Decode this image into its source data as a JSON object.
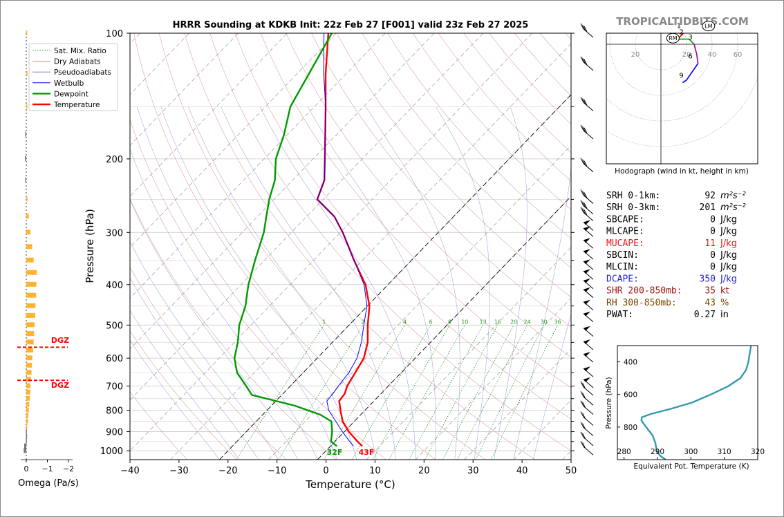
{
  "brand": "TROPICALTIDBITS.COM",
  "skewt": {
    "title": "HRRR Sounding at KDKB Init: 22z Feb 27 [F001] valid 23z Feb 27 2025",
    "xlabel": "Temperature (°C)",
    "ylabel": "Pressure (hPa)",
    "x_ticks": [
      -40,
      -30,
      -20,
      -10,
      0,
      10,
      20,
      30,
      40,
      50
    ],
    "p_ticks": [
      100,
      200,
      300,
      400,
      500,
      600,
      700,
      800,
      900,
      1000
    ],
    "legend": [
      "Sat. Mix. Ratio",
      "Dry Adiabats",
      "Pseudoadiabats",
      "Wetbulb",
      "Dewpoint",
      "Temperature"
    ],
    "mixing_ratio_labels": [
      "1",
      "2",
      "4",
      "6",
      "8",
      "10",
      "13",
      "16",
      "20",
      "24",
      "30",
      "36"
    ],
    "surface_dewpoint_label": "32F",
    "surface_temp_label": "43F",
    "colors": {
      "temperature": "#ff0000",
      "dewpoint": "#009900",
      "wetbulb": "#0000ff",
      "mixratio": "#2a9a2a"
    }
  },
  "omega": {
    "xlabel": "Omega (Pa/s)",
    "ticks": [
      "0",
      "−1",
      "−2"
    ],
    "dgz_label": "DGZ",
    "dgz_top": "DGZ",
    "dgz_bottom": "DGZ"
  },
  "hodograph": {
    "caption": "Hodograph (wind in kt, height in km)",
    "ring_labels": [
      "20",
      "20",
      "40",
      "60"
    ],
    "height_labels": [
      "1",
      "2",
      "3",
      "6",
      "9"
    ],
    "rm_label": "RM",
    "lm_label": "LM"
  },
  "indices": [
    {
      "label": "SRH 0-1km:",
      "value": "92",
      "unit": "m²s⁻²",
      "color": "#000000"
    },
    {
      "label": "SRH 0-3km:",
      "value": "201",
      "unit": "m²s⁻²",
      "color": "#000000"
    },
    {
      "label": "SBCAPE:",
      "value": "0",
      "unit": "J/kg",
      "color": "#000000"
    },
    {
      "label": "MLCAPE:",
      "value": "0",
      "unit": "J/kg",
      "color": "#000000"
    },
    {
      "label": "MUCAPE:",
      "value": "11",
      "unit": "J/kg",
      "color": "#dd2222"
    },
    {
      "label": "SBCIN:",
      "value": "0",
      "unit": "J/kg",
      "color": "#000000"
    },
    {
      "label": "MLCIN:",
      "value": "0",
      "unit": "J/kg",
      "color": "#000000"
    },
    {
      "label": "DCAPE:",
      "value": "350",
      "unit": "J/kg",
      "color": "#2222cc"
    },
    {
      "label": "SHR 200-850mb:",
      "value": "35",
      "unit": "kt",
      "color": "#aa1111"
    },
    {
      "label": "RH 300-850mb:",
      "value": "43",
      "unit": "%",
      "color": "#7a4a00"
    },
    {
      "label": "PWAT:",
      "value": "0.27",
      "unit": "in",
      "color": "#000000"
    }
  ],
  "theta_e": {
    "xlabel": "Equivalent Pot. Temperature (K)",
    "ylabel": "Pressure (hPa)",
    "x_ticks": [
      "280",
      "290",
      "300",
      "310",
      "320"
    ],
    "y_ticks": [
      "400",
      "600",
      "800"
    ]
  },
  "chart_data": [
    {
      "type": "line",
      "title": "HRRR Sounding at KDKB Init: 22z Feb 27 [F001] valid 23z Feb 27 2025",
      "xlabel": "Temperature (°C)",
      "ylabel": "Pressure (hPa)",
      "xlim": [
        -40,
        50
      ],
      "ylim": [
        1050,
        100
      ],
      "y_scale": "log",
      "legend_position": "top-left",
      "series": [
        {
          "name": "Temperature",
          "color": "#ff0000",
          "points": [
            [
              975,
              6.5
            ],
            [
              950,
              4.6
            ],
            [
              900,
              0.9
            ],
            [
              850,
              -2.4
            ],
            [
              800,
              -5.0
            ],
            [
              760,
              -7.1
            ],
            [
              730,
              -7.4
            ],
            [
              700,
              -8.4
            ],
            [
              650,
              -9.4
            ],
            [
              600,
              -10.5
            ],
            [
              550,
              -12.8
            ],
            [
              500,
              -16.2
            ],
            [
              450,
              -19.6
            ],
            [
              400,
              -24.6
            ],
            [
              350,
              -31.7
            ],
            [
              300,
              -39.5
            ],
            [
              275,
              -44.3
            ],
            [
              250,
              -51.2
            ],
            [
              225,
              -53.5
            ],
            [
              200,
              -57.6
            ],
            [
              175,
              -62.3
            ],
            [
              150,
              -67.7
            ],
            [
              125,
              -74.2
            ],
            [
              100,
              -81.6
            ]
          ]
        },
        {
          "name": "Wetbulb",
          "color": "#0000ff",
          "points": [
            [
              975,
              4.7
            ],
            [
              950,
              3.0
            ],
            [
              900,
              -0.4
            ],
            [
              850,
              -3.8
            ],
            [
              800,
              -7.4
            ],
            [
              760,
              -9.6
            ],
            [
              730,
              -9.8
            ],
            [
              700,
              -10.2
            ],
            [
              650,
              -10.7
            ],
            [
              600,
              -11.9
            ],
            [
              550,
              -14.1
            ],
            [
              500,
              -17.0
            ],
            [
              450,
              -20.1
            ],
            [
              400,
              -24.9
            ],
            [
              350,
              -31.7
            ],
            [
              300,
              -39.5
            ],
            [
              275,
              -44.3
            ],
            [
              250,
              -51.2
            ],
            [
              225,
              -53.5
            ],
            [
              200,
              -57.6
            ],
            [
              175,
              -62.3
            ],
            [
              150,
              -67.7
            ],
            [
              125,
              -74.6
            ],
            [
              100,
              -82.5
            ]
          ]
        },
        {
          "name": "Dewpoint",
          "color": "#009900",
          "points": [
            [
              975,
              1.3
            ],
            [
              950,
              -0.8
            ],
            [
              900,
              -2.5
            ],
            [
              850,
              -4.7
            ],
            [
              820,
              -8.2
            ],
            [
              780,
              -15.2
            ],
            [
              735,
              -26.1
            ],
            [
              700,
              -29.0
            ],
            [
              650,
              -33.5
            ],
            [
              600,
              -36.9
            ],
            [
              550,
              -39.3
            ],
            [
              500,
              -42.4
            ],
            [
              450,
              -44.9
            ],
            [
              400,
              -48.5
            ],
            [
              350,
              -51.9
            ],
            [
              300,
              -55.6
            ],
            [
              275,
              -58.2
            ],
            [
              250,
              -61.0
            ],
            [
              225,
              -63.6
            ],
            [
              200,
              -67.6
            ],
            [
              175,
              -70.7
            ],
            [
              150,
              -74.9
            ],
            [
              125,
              -77.6
            ],
            [
              100,
              -80.9
            ]
          ]
        }
      ],
      "mixing_ratio_lines_g_per_kg": [
        1,
        2,
        4,
        6,
        8,
        10,
        13,
        16,
        20,
        24,
        30,
        36
      ]
    },
    {
      "type": "bar",
      "xlabel": "Omega (Pa/s)",
      "xlim": [
        0,
        -2.5
      ],
      "pressure_levels": [
        1000,
        975,
        950,
        925,
        900,
        875,
        850,
        825,
        800,
        775,
        750,
        725,
        700,
        675,
        650,
        625,
        600,
        575,
        550,
        525,
        500,
        475,
        450,
        425,
        400,
        375,
        350,
        325,
        300,
        275,
        250,
        225,
        200,
        175,
        150,
        125,
        100
      ],
      "values": [
        0.12,
        0.1,
        0.02,
        0.01,
        0.02,
        -0.05,
        -0.08,
        -0.1,
        -0.12,
        -0.14,
        -0.17,
        -0.19,
        -0.2,
        -0.22,
        -0.25,
        -0.27,
        -0.29,
        -0.33,
        -0.35,
        -0.37,
        -0.39,
        -0.42,
        -0.44,
        -0.47,
        -0.48,
        -0.5,
        -0.35,
        -0.28,
        -0.2,
        -0.12,
        -0.06,
        0.05,
        0.06,
        0.05,
        -0.03,
        -0.06,
        -0.03
      ],
      "dgz_pressure": [
        565,
        678
      ]
    },
    {
      "type": "line",
      "caption": "Hodograph (wind in kt, height in km)",
      "units": "kt",
      "points_u_v": [
        [
          17,
          -30
        ],
        [
          20,
          -28
        ],
        [
          29,
          -15
        ],
        [
          28,
          -8
        ],
        [
          26,
          0
        ],
        [
          22,
          4
        ],
        [
          13,
          4
        ],
        [
          20,
          11
        ],
        [
          11,
          14
        ],
        [
          7,
          17
        ]
      ],
      "height_labels_km": [
        [
          1,
          14,
          15
        ],
        [
          2,
          16,
          10
        ],
        [
          3,
          23,
          6
        ],
        [
          6,
          23,
          -9
        ],
        [
          9,
          16,
          -24
        ]
      ],
      "rm_uv": [
        4,
        8
      ],
      "lm_uv": [
        28,
        11
      ]
    },
    {
      "type": "line",
      "xlabel": "Equivalent Pot. Temperature (K)",
      "ylabel": "Pressure (hPa)",
      "xlim": [
        278,
        320
      ],
      "ylim": [
        1000,
        300
      ],
      "points": [
        [
          1000,
          292.5
        ],
        [
          980,
          291
        ],
        [
          950,
          289.8
        ],
        [
          900,
          289.4
        ],
        [
          850,
          288.5
        ],
        [
          800,
          286.6
        ],
        [
          760,
          285.2
        ],
        [
          740,
          285.3
        ],
        [
          720,
          288
        ],
        [
          690,
          293.7
        ],
        [
          650,
          300.3
        ],
        [
          600,
          306
        ],
        [
          550,
          311.1
        ],
        [
          500,
          314.8
        ],
        [
          450,
          316.5
        ],
        [
          400,
          317.2
        ],
        [
          350,
          317.6
        ],
        [
          300,
          318.0
        ]
      ]
    }
  ]
}
